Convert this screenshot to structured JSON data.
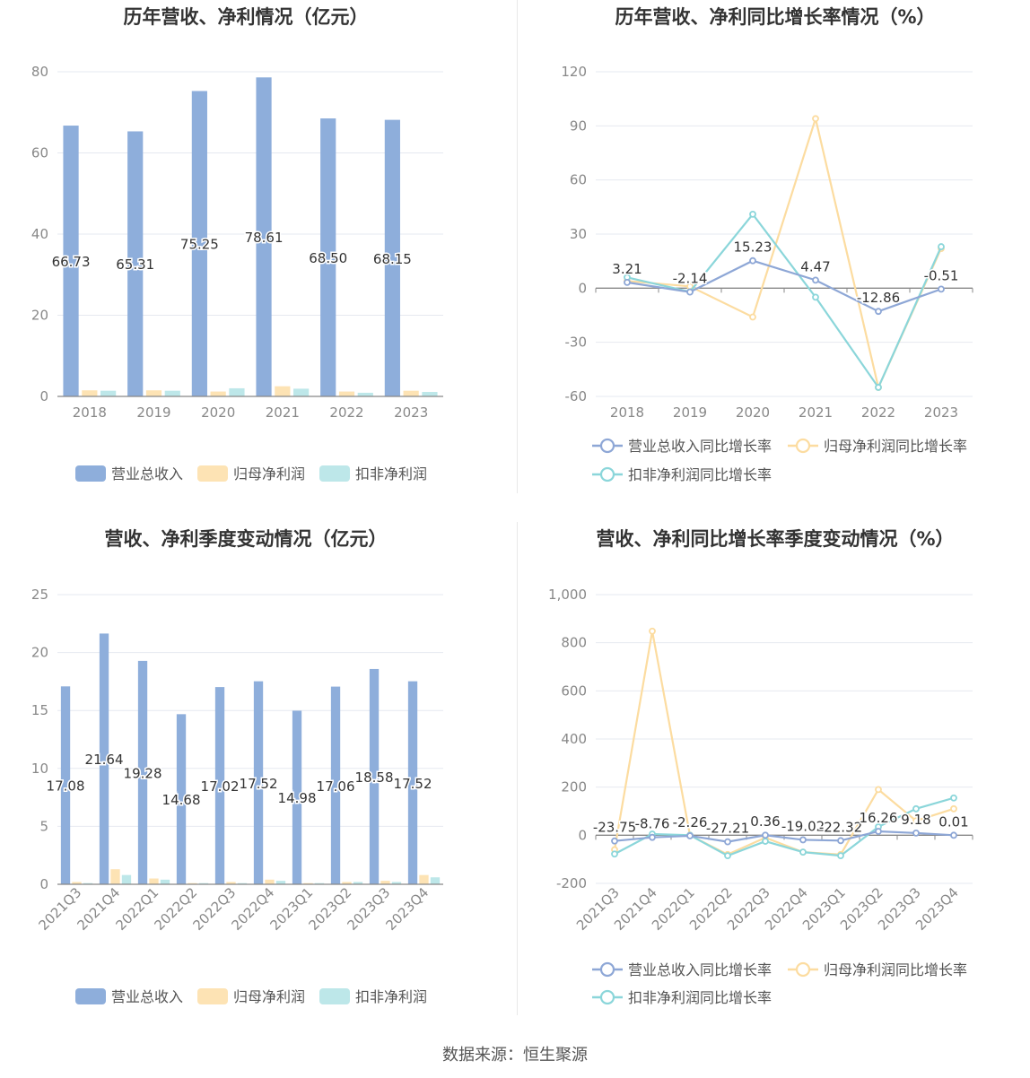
{
  "colors": {
    "revenue": "#8eaedb",
    "net_profit": "#fde3b4",
    "deducted_profit": "#bde7e9",
    "line_revenue": "#8ea7d6",
    "line_net": "#fcdca0",
    "line_deducted": "#8bd6da",
    "grid": "#e6e9f0",
    "axis": "#888888"
  },
  "footer": {
    "source": "数据来源：恒生聚源"
  },
  "chart_data": [
    {
      "id": "annual_bar",
      "type": "bar",
      "title": "历年营收、净利情况（亿元）",
      "categories": [
        "2018",
        "2019",
        "2020",
        "2021",
        "2022",
        "2023"
      ],
      "yticks": [
        "0",
        "20",
        "40",
        "60",
        "80"
      ],
      "ylim": [
        0,
        80
      ],
      "series": [
        {
          "name": "营业总收入",
          "values": [
            66.73,
            65.31,
            75.25,
            78.61,
            68.5,
            68.15
          ],
          "labels": [
            "66.73",
            "65.31",
            "75.25",
            "78.61",
            "68.50",
            "68.15"
          ]
        },
        {
          "name": "归母净利润",
          "values": [
            1.5,
            1.5,
            1.2,
            2.5,
            1.2,
            1.4
          ]
        },
        {
          "name": "扣非净利润",
          "values": [
            1.4,
            1.4,
            2.0,
            1.9,
            0.9,
            1.1
          ]
        }
      ],
      "legend": "bottom",
      "grid": true
    },
    {
      "id": "annual_line",
      "type": "line",
      "title": "历年营收、净利同比增长率情况（%）",
      "categories": [
        "2018",
        "2019",
        "2020",
        "2021",
        "2022",
        "2023"
      ],
      "yticks": [
        "-60",
        "-30",
        "0",
        "30",
        "60",
        "90",
        "120"
      ],
      "ylim": [
        -60,
        120
      ],
      "series": [
        {
          "name": "营业总收入同比增长率",
          "values": [
            3.21,
            -2.14,
            15.23,
            4.47,
            -12.86,
            -0.51
          ],
          "labels": [
            "3.21",
            "-2.14",
            "15.23",
            "4.47",
            "-12.86",
            "-0.51"
          ]
        },
        {
          "name": "归母净利润同比增长率",
          "values": [
            4,
            1,
            -16,
            94,
            -55,
            22
          ]
        },
        {
          "name": "扣非净利润同比增长率",
          "values": [
            6,
            -2,
            41,
            -5,
            -55,
            23
          ]
        }
      ],
      "legend": "bottom",
      "grid": true
    },
    {
      "id": "quarter_bar",
      "type": "bar",
      "title": "营收、净利季度变动情况（亿元）",
      "categories": [
        "2021Q3",
        "2021Q4",
        "2022Q1",
        "2022Q2",
        "2022Q3",
        "2022Q4",
        "2023Q1",
        "2023Q2",
        "2023Q3",
        "2023Q4"
      ],
      "yticks": [
        "0",
        "5",
        "10",
        "15",
        "20",
        "25"
      ],
      "ylim": [
        0,
        25
      ],
      "series": [
        {
          "name": "营业总收入",
          "values": [
            17.08,
            21.64,
            19.28,
            14.68,
            17.02,
            17.52,
            14.98,
            17.06,
            18.58,
            17.52
          ],
          "labels": [
            "17.08",
            "21.64",
            "19.28",
            "14.68",
            "17.02",
            "17.52",
            "14.98",
            "17.06",
            "18.58",
            "17.52"
          ]
        },
        {
          "name": "归母净利润",
          "values": [
            0.2,
            1.3,
            0.5,
            0.1,
            0.2,
            0.4,
            0.1,
            0.2,
            0.3,
            0.8
          ]
        },
        {
          "name": "扣非净利润",
          "values": [
            0.1,
            0.8,
            0.4,
            0.1,
            0.1,
            0.3,
            0.1,
            0.2,
            0.2,
            0.6
          ]
        }
      ],
      "legend": "bottom",
      "grid": true
    },
    {
      "id": "quarter_line",
      "type": "line",
      "title": "营收、净利同比增长率季度变动情况（%）",
      "categories": [
        "2021Q3",
        "2021Q4",
        "2022Q1",
        "2022Q2",
        "2022Q3",
        "2022Q4",
        "2023Q1",
        "2023Q2",
        "2023Q3",
        "2023Q4"
      ],
      "yticks": [
        "-200",
        "0",
        "200",
        "400",
        "600",
        "800",
        "1,000"
      ],
      "ylim": [
        -200,
        1000
      ],
      "series": [
        {
          "name": "营业总收入同比增长率",
          "values": [
            -23.75,
            -8.76,
            -2.26,
            -27.21,
            0.36,
            -19.02,
            -22.32,
            16.26,
            9.18,
            0.01
          ],
          "labels": [
            "-23.75",
            "-8.76",
            "-2.26",
            "-27.21",
            "0.36",
            "-19.02",
            "-22.32",
            "16.26",
            "9.18",
            "0.01"
          ]
        },
        {
          "name": "归母净利润同比增长率",
          "values": [
            -60,
            848,
            0,
            -80,
            -10,
            -70,
            -80,
            190,
            60,
            110
          ]
        },
        {
          "name": "扣非净利润同比增长率",
          "values": [
            -78,
            5,
            0,
            -85,
            -25,
            -70,
            -85,
            35,
            110,
            155
          ]
        }
      ],
      "legend": "bottom",
      "grid": true
    }
  ]
}
